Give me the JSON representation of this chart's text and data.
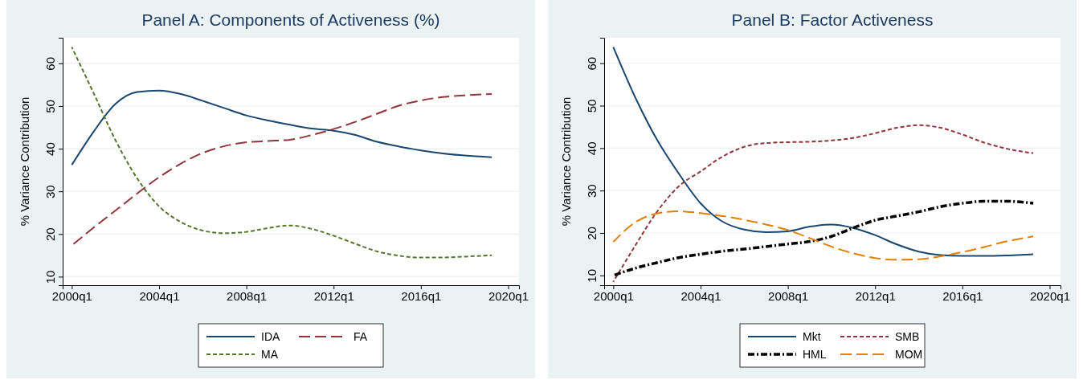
{
  "chart_data": [
    {
      "type": "line",
      "title": "Panel A: Components of Activeness (%)",
      "ylabel": "% Variance Contribution",
      "grid": "y",
      "legend": "bottom",
      "xlim": [
        "1999-08",
        "2020-07"
      ],
      "ylim": [
        8,
        66
      ],
      "xticks": [
        {
          "value": "2000-01",
          "label": "2000q1"
        },
        {
          "value": "2004-01",
          "label": "2004q1"
        },
        {
          "value": "2008-01",
          "label": "2008q1"
        },
        {
          "value": "2012-01",
          "label": "2012q1"
        },
        {
          "value": "2016-01",
          "label": "2016q1"
        },
        {
          "value": "2020-01",
          "label": "2020q1"
        }
      ],
      "yticks": [
        10,
        20,
        30,
        40,
        50,
        60
      ],
      "x": [
        "2000-01",
        "2001-01",
        "2002-01",
        "2003-01",
        "2004-01",
        "2005-01",
        "2006-01",
        "2007-01",
        "2008-01",
        "2009-01",
        "2010-01",
        "2011-01",
        "2012-01",
        "2013-01",
        "2014-01",
        "2015-01",
        "2016-01",
        "2017-01",
        "2018-01",
        "2019-04"
      ],
      "series": [
        {
          "name": "IDA",
          "color": "#1a476f",
          "line_style": "solid",
          "values": [
            36.2,
            44,
            50.5,
            53.3,
            53.6,
            52.8,
            51.2,
            49.5,
            47.8,
            46.6,
            45.6,
            44.7,
            44.2,
            43.2,
            41.6,
            40.5,
            39.6,
            38.9,
            38.4,
            38.0
          ]
        },
        {
          "name": "FA",
          "color": "#90353b",
          "line_style": "longdash",
          "values": [
            17.3,
            21.5,
            25.5,
            29.5,
            33.3,
            36.5,
            39,
            40.6,
            41.5,
            41.8,
            42.1,
            43.2,
            44.6,
            46.3,
            48.2,
            50.1,
            51.3,
            52.1,
            52.5,
            52.8
          ]
        },
        {
          "name": "MA",
          "color": "#55752f",
          "line_style": "dashed",
          "values": [
            63.8,
            53,
            42,
            33,
            26.5,
            22.8,
            20.8,
            20.2,
            20.5,
            21.4,
            22,
            21.2,
            19.6,
            17.7,
            15.9,
            14.9,
            14.5,
            14.5,
            14.7,
            15
          ]
        }
      ]
    },
    {
      "type": "line",
      "title": "Panel B: Factor Activeness",
      "ylabel": "% Variance Contribution",
      "grid": "y",
      "legend": "bottom",
      "xlim": [
        "1999-08",
        "2020-07"
      ],
      "ylim": [
        7.7,
        66
      ],
      "xticks": [
        {
          "value": "2000-01",
          "label": "2000q1"
        },
        {
          "value": "2004-01",
          "label": "2004q1"
        },
        {
          "value": "2008-01",
          "label": "2008q1"
        },
        {
          "value": "2012-01",
          "label": "2012q1"
        },
        {
          "value": "2016-01",
          "label": "2016q1"
        },
        {
          "value": "2020-01",
          "label": "2020q1"
        }
      ],
      "yticks": [
        10,
        20,
        30,
        40,
        50,
        60
      ],
      "x": [
        "2000-01",
        "2001-01",
        "2002-01",
        "2003-01",
        "2004-01",
        "2005-01",
        "2006-01",
        "2007-01",
        "2008-01",
        "2009-01",
        "2010-01",
        "2011-01",
        "2012-01",
        "2013-01",
        "2014-01",
        "2015-01",
        "2016-01",
        "2017-01",
        "2018-01",
        "2019-04"
      ],
      "series": [
        {
          "name": "Mkt",
          "color": "#1a476f",
          "line_style": "solid",
          "values": [
            63.8,
            52,
            42,
            34,
            27,
            22.7,
            20.8,
            20.2,
            20.4,
            21.5,
            22,
            21.2,
            19.5,
            17.3,
            15.6,
            14.8,
            14.6,
            14.6,
            14.7,
            15
          ]
        },
        {
          "name": "SMB",
          "color": "#90353b",
          "line_style": "dashed",
          "values": [
            8.5,
            17,
            25,
            31,
            34.5,
            38,
            40.3,
            41.2,
            41.4,
            41.5,
            41.8,
            42.4,
            43.5,
            44.8,
            45.4,
            44.8,
            43.2,
            41.3,
            39.9,
            38.8
          ]
        },
        {
          "name": "HML",
          "color": "#000000",
          "line_style": "dashdot",
          "values": [
            10,
            11.7,
            13,
            14.2,
            15,
            15.7,
            16.2,
            16.8,
            17.4,
            18,
            19.2,
            21.2,
            23,
            24,
            25,
            26.2,
            27,
            27.5,
            27.5,
            27
          ]
        },
        {
          "name": "MOM",
          "color": "#e37e00",
          "line_style": "longdash",
          "values": [
            17.9,
            22.5,
            24.6,
            25.1,
            24.7,
            24,
            23.1,
            22,
            20.7,
            18.8,
            16.8,
            15.2,
            14.1,
            13.7,
            13.8,
            14.5,
            15.5,
            16.7,
            18,
            19.2
          ]
        }
      ]
    }
  ]
}
